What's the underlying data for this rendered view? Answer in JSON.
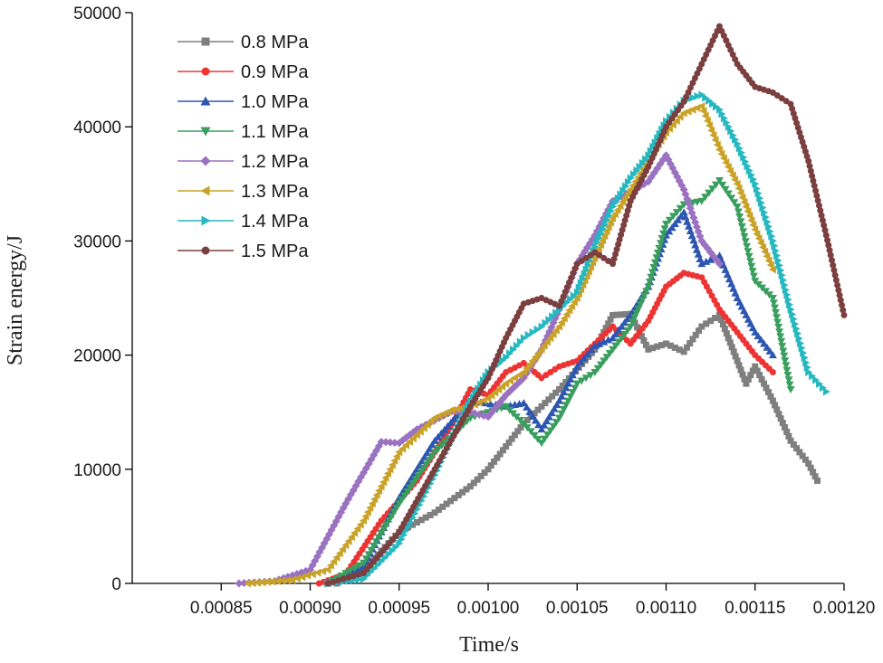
{
  "chart_data": {
    "type": "line",
    "title": "",
    "xlabel": "Time/s",
    "ylabel": "Strain energy/J",
    "xlim": [
      0.0008,
      0.0012
    ],
    "ylim": [
      0,
      50000
    ],
    "x_ticks": [
      0.00085,
      0.0009,
      0.00095,
      0.001,
      0.00105,
      0.0011,
      0.00115,
      0.0012
    ],
    "x_tick_labels": [
      "0.00085",
      "0.00090",
      "0.00095",
      "0.00100",
      "0.00105",
      "0.00110",
      "0.00115",
      "0.00120"
    ],
    "y_ticks": [
      0,
      10000,
      20000,
      30000,
      40000,
      50000
    ],
    "y_tick_labels": [
      "0",
      "10000",
      "20000",
      "30000",
      "40000",
      "50000"
    ],
    "legend_position": "top-left",
    "series": [
      {
        "name": "0.8 MPa",
        "color": "#7f7f7f",
        "marker": "square",
        "points": [
          [
            0.000915,
            0
          ],
          [
            0.00093,
            1200
          ],
          [
            0.00095,
            4500
          ],
          [
            0.00097,
            6200
          ],
          [
            0.00099,
            8500
          ],
          [
            0.001,
            10000
          ],
          [
            0.00102,
            14000
          ],
          [
            0.00104,
            17000
          ],
          [
            0.00106,
            20500
          ],
          [
            0.00107,
            23500
          ],
          [
            0.00108,
            23600
          ],
          [
            0.00109,
            20500
          ],
          [
            0.0011,
            21000
          ],
          [
            0.00111,
            20300
          ],
          [
            0.00112,
            22500
          ],
          [
            0.00113,
            23500
          ],
          [
            0.00114,
            19500
          ],
          [
            0.001145,
            17500
          ],
          [
            0.00115,
            19000
          ],
          [
            0.00116,
            16000
          ],
          [
            0.00117,
            12500
          ],
          [
            0.00118,
            10500
          ],
          [
            0.001185,
            9000
          ]
        ]
      },
      {
        "name": "0.9 MPa",
        "color": "#ee3333",
        "marker": "circle",
        "points": [
          [
            0.000905,
            0
          ],
          [
            0.00092,
            800
          ],
          [
            0.00094,
            5500
          ],
          [
            0.00096,
            9000
          ],
          [
            0.00098,
            14000
          ],
          [
            0.00099,
            17000
          ],
          [
            0.001,
            16500
          ],
          [
            0.00101,
            18500
          ],
          [
            0.00102,
            19300
          ],
          [
            0.00103,
            18000
          ],
          [
            0.00104,
            19000
          ],
          [
            0.00105,
            19500
          ],
          [
            0.00106,
            21000
          ],
          [
            0.00107,
            22500
          ],
          [
            0.00108,
            21000
          ],
          [
            0.00109,
            23000
          ],
          [
            0.0011,
            26000
          ],
          [
            0.00111,
            27200
          ],
          [
            0.00112,
            26800
          ],
          [
            0.00113,
            24000
          ],
          [
            0.00114,
            22000
          ],
          [
            0.00115,
            20000
          ],
          [
            0.00116,
            18500
          ]
        ]
      },
      {
        "name": "1.0 MPa",
        "color": "#2d56b0",
        "marker": "triangle-up",
        "points": [
          [
            0.00091,
            0
          ],
          [
            0.00093,
            1500
          ],
          [
            0.00095,
            7500
          ],
          [
            0.00097,
            12500
          ],
          [
            0.00099,
            16000
          ],
          [
            0.00101,
            15500
          ],
          [
            0.00102,
            15800
          ],
          [
            0.00103,
            13500
          ],
          [
            0.00104,
            16000
          ],
          [
            0.00105,
            19000
          ],
          [
            0.00106,
            20800
          ],
          [
            0.00107,
            21500
          ],
          [
            0.00108,
            23500
          ],
          [
            0.00109,
            26000
          ],
          [
            0.0011,
            30500
          ],
          [
            0.00111,
            32500
          ],
          [
            0.00112,
            28000
          ],
          [
            0.00113,
            28700
          ],
          [
            0.00114,
            25000
          ],
          [
            0.00115,
            22000
          ],
          [
            0.00116,
            20000
          ]
        ]
      },
      {
        "name": "1.1 MPa",
        "color": "#3a9e5e",
        "marker": "triangle-down",
        "points": [
          [
            0.00091,
            0
          ],
          [
            0.00093,
            1800
          ],
          [
            0.00095,
            7000
          ],
          [
            0.00097,
            11500
          ],
          [
            0.00099,
            14500
          ],
          [
            0.00101,
            15500
          ],
          [
            0.00102,
            14000
          ],
          [
            0.00103,
            12300
          ],
          [
            0.00104,
            14500
          ],
          [
            0.00105,
            17500
          ],
          [
            0.00106,
            18500
          ],
          [
            0.00107,
            20500
          ],
          [
            0.00108,
            22500
          ],
          [
            0.00109,
            26000
          ],
          [
            0.0011,
            31500
          ],
          [
            0.00111,
            33200
          ],
          [
            0.00112,
            33500
          ],
          [
            0.00113,
            35300
          ],
          [
            0.00114,
            33000
          ],
          [
            0.00115,
            26500
          ],
          [
            0.00116,
            25000
          ],
          [
            0.00117,
            17000
          ]
        ]
      },
      {
        "name": "1.2 MPa",
        "color": "#9b72c1",
        "marker": "diamond",
        "points": [
          [
            0.00086,
            0
          ],
          [
            0.00088,
            200
          ],
          [
            0.0009,
            1200
          ],
          [
            0.00092,
            7000
          ],
          [
            0.00094,
            12400
          ],
          [
            0.00095,
            12300
          ],
          [
            0.00096,
            13500
          ],
          [
            0.00097,
            14300
          ],
          [
            0.00098,
            15100
          ],
          [
            0.00099,
            15000
          ],
          [
            0.001,
            14600
          ],
          [
            0.00101,
            16500
          ],
          [
            0.00102,
            18000
          ],
          [
            0.00103,
            20500
          ],
          [
            0.00104,
            24000
          ],
          [
            0.00105,
            28000
          ],
          [
            0.00106,
            30500
          ],
          [
            0.00107,
            33500
          ],
          [
            0.00108,
            34300
          ],
          [
            0.00109,
            35200
          ],
          [
            0.0011,
            37500
          ],
          [
            0.00111,
            34500
          ],
          [
            0.00112,
            30000
          ],
          [
            0.00113,
            28000
          ]
        ]
      },
      {
        "name": "1.3 MPa",
        "color": "#c9a227",
        "marker": "triangle-left",
        "points": [
          [
            0.000865,
            0
          ],
          [
            0.00089,
            300
          ],
          [
            0.00091,
            1200
          ],
          [
            0.00093,
            5500
          ],
          [
            0.00095,
            11500
          ],
          [
            0.00097,
            14500
          ],
          [
            0.00098,
            15200
          ],
          [
            0.00099,
            15500
          ],
          [
            0.001,
            16200
          ],
          [
            0.00101,
            17500
          ],
          [
            0.00102,
            18500
          ],
          [
            0.00103,
            20500
          ],
          [
            0.00104,
            22500
          ],
          [
            0.00105,
            25000
          ],
          [
            0.00106,
            28500
          ],
          [
            0.00107,
            32000
          ],
          [
            0.00108,
            34500
          ],
          [
            0.00109,
            37000
          ],
          [
            0.0011,
            39500
          ],
          [
            0.00111,
            41200
          ],
          [
            0.00112,
            41800
          ],
          [
            0.00113,
            38000
          ],
          [
            0.00114,
            35000
          ],
          [
            0.00115,
            31000
          ],
          [
            0.00116,
            27500
          ]
        ]
      },
      {
        "name": "1.4 MPa",
        "color": "#26b8c0",
        "marker": "triangle-right",
        "points": [
          [
            0.00091,
            0
          ],
          [
            0.00093,
            400
          ],
          [
            0.00095,
            3500
          ],
          [
            0.00097,
            9500
          ],
          [
            0.00099,
            16000
          ],
          [
            0.001,
            18500
          ],
          [
            0.00101,
            19800
          ],
          [
            0.00102,
            21500
          ],
          [
            0.00103,
            22500
          ],
          [
            0.00104,
            24000
          ],
          [
            0.00105,
            25500
          ],
          [
            0.00106,
            29500
          ],
          [
            0.00107,
            33000
          ],
          [
            0.00108,
            35500
          ],
          [
            0.00109,
            37500
          ],
          [
            0.0011,
            40500
          ],
          [
            0.00111,
            42300
          ],
          [
            0.00112,
            42800
          ],
          [
            0.00113,
            41500
          ],
          [
            0.00114,
            38500
          ],
          [
            0.00115,
            35000
          ],
          [
            0.00116,
            30000
          ],
          [
            0.00117,
            24000
          ],
          [
            0.00118,
            18500
          ],
          [
            0.00119,
            16800
          ]
        ]
      },
      {
        "name": "1.5 MPa",
        "color": "#7b3f3f",
        "marker": "circle",
        "points": [
          [
            0.00091,
            0
          ],
          [
            0.00093,
            900
          ],
          [
            0.00095,
            4500
          ],
          [
            0.00097,
            10000
          ],
          [
            0.00099,
            15500
          ],
          [
            0.001,
            18000
          ],
          [
            0.00101,
            21500
          ],
          [
            0.00102,
            24500
          ],
          [
            0.00103,
            25000
          ],
          [
            0.00104,
            24300
          ],
          [
            0.00105,
            28000
          ],
          [
            0.00106,
            29000
          ],
          [
            0.00107,
            28000
          ],
          [
            0.00108,
            33500
          ],
          [
            0.00109,
            36500
          ],
          [
            0.0011,
            40000
          ],
          [
            0.00111,
            42200
          ],
          [
            0.00112,
            45500
          ],
          [
            0.00113,
            48800
          ],
          [
            0.00114,
            45500
          ],
          [
            0.00115,
            43500
          ],
          [
            0.00116,
            43000
          ],
          [
            0.00117,
            42000
          ],
          [
            0.00118,
            37000
          ],
          [
            0.00119,
            30500
          ],
          [
            0.0012,
            23500
          ]
        ]
      }
    ]
  }
}
